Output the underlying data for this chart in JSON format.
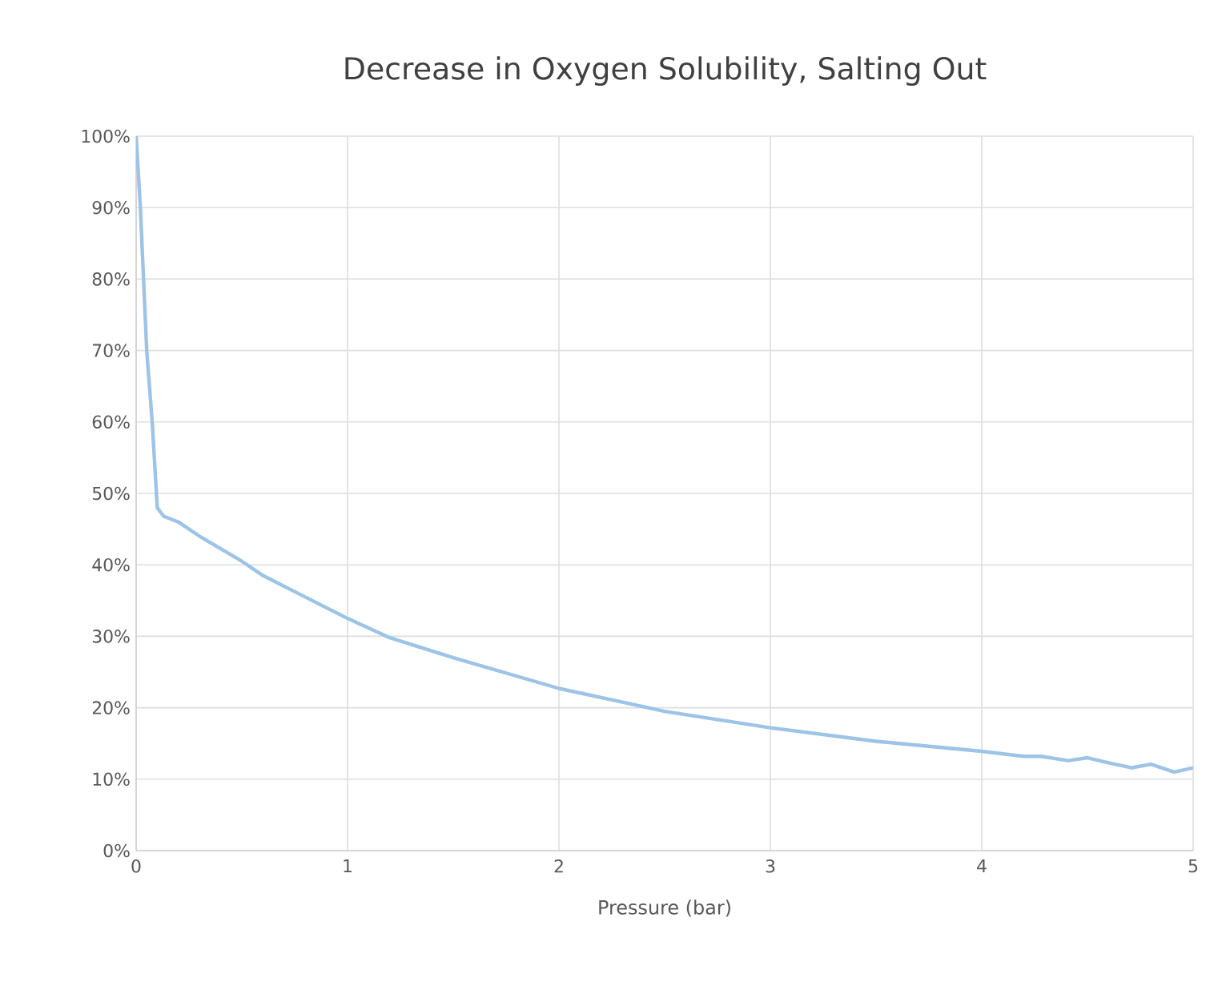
{
  "chart_data": {
    "type": "line",
    "title": "Decrease in Oxygen Solubility, Salting Out",
    "xlabel": "Pressure (bar)",
    "x": [
      0,
      0.02,
      0.05,
      0.076,
      0.1,
      0.13,
      0.2,
      0.3,
      0.5,
      0.6,
      0.8,
      1,
      1.2,
      1.5,
      2,
      2.5,
      3,
      3.5,
      4,
      4.2,
      4.28,
      4.41,
      4.5,
      4.6,
      4.71,
      4.8,
      4.91,
      5
    ],
    "series": [
      {
        "color": "#9dc3e6",
        "values": [
          100,
          90,
          70,
          60,
          48,
          46.8,
          46,
          44,
          40.5,
          38.5,
          35.5,
          32.5,
          29.8,
          27,
          22.7,
          19.5,
          17.2,
          15.3,
          13.9,
          13.2,
          13.2,
          12.6,
          13.0,
          12.3,
          11.6,
          12.1,
          11.0,
          11.6
        ]
      }
    ],
    "xlim": [
      0,
      5
    ],
    "xticks": [
      0,
      1,
      2,
      3,
      4,
      5
    ],
    "ylim": [
      0,
      100
    ],
    "yticks": [
      {
        "value": 0,
        "label": "0%"
      },
      {
        "value": 10,
        "label": "10%"
      },
      {
        "value": 20,
        "label": "20%"
      },
      {
        "value": 30,
        "label": "30%"
      },
      {
        "value": 40,
        "label": "40%"
      },
      {
        "value": 50,
        "label": "50%"
      },
      {
        "value": 60,
        "label": "60%"
      },
      {
        "value": 70,
        "label": "70%"
      },
      {
        "value": 80,
        "label": "80%"
      },
      {
        "value": 90,
        "label": "90%"
      },
      {
        "value": 100,
        "label": "100%"
      }
    ],
    "grid": true,
    "marker": "none",
    "line_style": "solid"
  }
}
